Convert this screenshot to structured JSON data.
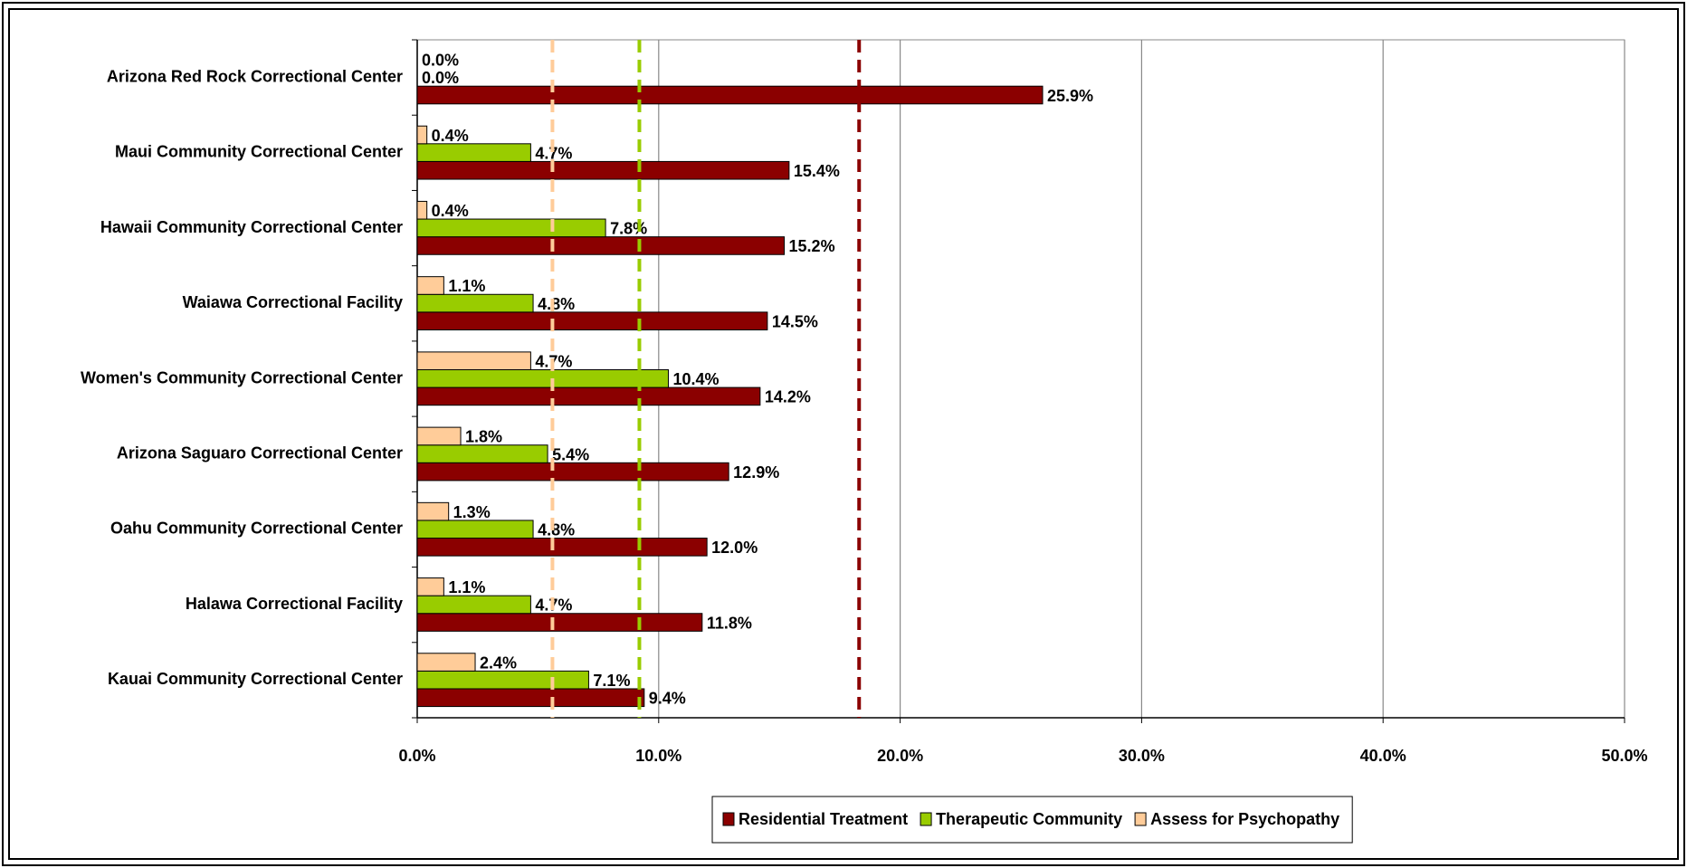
{
  "chart_data": {
    "type": "hbar",
    "categories": [
      "Arizona Red Rock Correctional Center",
      "Maui Community Correctional Center",
      "Hawaii Community Correctional Center",
      "Waiawa Correctional Facility",
      "Women's Community Correctional Center",
      "Arizona Saguaro Correctional Center",
      "Oahu Community Correctional Center",
      "Halawa Correctional Facility",
      "Kauai Community Correctional Center"
    ],
    "series": [
      {
        "name": "Residential Treatment",
        "color": "#8b0000",
        "reference": 18.3,
        "values": [
          25.9,
          15.4,
          15.2,
          14.5,
          14.2,
          12.9,
          12.0,
          11.8,
          9.4
        ],
        "value_labels": [
          "25.9%",
          "15.4%",
          "15.2%",
          "14.5%",
          "14.2%",
          "12.9%",
          "12.0%",
          "11.8%",
          "9.4%"
        ]
      },
      {
        "name": "Therapeutic Community",
        "color": "#99cc00",
        "reference": 9.2,
        "values": [
          0,
          4.7,
          7.8,
          4.8,
          10.4,
          5.4,
          4.8,
          4.7,
          7.1
        ],
        "value_labels": [
          "0.0%",
          "4.7%",
          "7.8%",
          "4.8%",
          "10.4%",
          "5.4%",
          "4.8%",
          "4.7%",
          "7.1%"
        ]
      },
      {
        "name": "Assess for Psychopathy",
        "color": "#ffcc99",
        "reference": 5.6,
        "values": [
          0,
          0.4,
          0.4,
          1.1,
          4.7,
          1.8,
          1.3,
          1.1,
          2.4
        ],
        "value_labels": [
          "0.0%",
          "0.4%",
          "0.4%",
          "1.1%",
          "4.7%",
          "1.8%",
          "1.3%",
          "1.1%",
          "2.4%"
        ]
      }
    ],
    "xlim": [
      0,
      50
    ],
    "xticks": [
      {
        "value": 0,
        "label": "0.0%"
      },
      {
        "value": 10,
        "label": "10.0%"
      },
      {
        "value": 20,
        "label": "20.0%"
      },
      {
        "value": 30,
        "label": "30.0%"
      },
      {
        "value": 40,
        "label": "40.0%"
      },
      {
        "value": 50,
        "label": "50.0%"
      }
    ],
    "grid": true,
    "legend": "bottom"
  }
}
